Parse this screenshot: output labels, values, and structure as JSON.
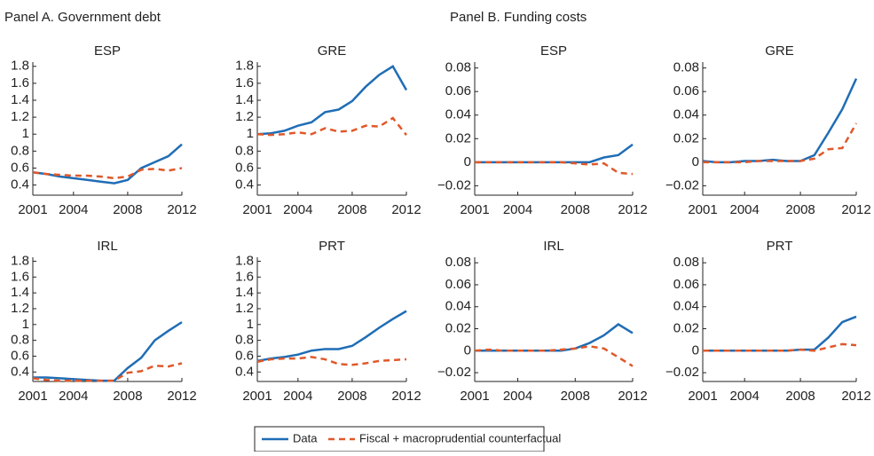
{
  "panel_titles": [
    "Panel A. Government debt",
    "Panel B. Funding costs"
  ],
  "chart_data": [
    {
      "type": "line",
      "title": "ESP",
      "xlim": [
        2001,
        2012
      ],
      "xticks": [
        2001,
        2004,
        2008,
        2012
      ],
      "ylim": [
        0.28,
        1.85
      ],
      "yticks": [
        0.4,
        0.6,
        0.8,
        1,
        1.2,
        1.4,
        1.6,
        1.8
      ],
      "x": [
        2001,
        2002,
        2003,
        2004,
        2005,
        2006,
        2007,
        2008,
        2009,
        2010,
        2011,
        2012
      ],
      "series": [
        {
          "name": "Data",
          "color": "#1f6db5",
          "dashed": false,
          "values": [
            0.55,
            0.53,
            0.5,
            0.48,
            0.46,
            0.44,
            0.42,
            0.46,
            0.6,
            0.67,
            0.74,
            0.88
          ]
        },
        {
          "name": "Fiscal + macroprudential counterfactual",
          "color": "#e0582a",
          "dashed": true,
          "values": [
            0.55,
            0.53,
            0.52,
            0.51,
            0.51,
            0.5,
            0.48,
            0.5,
            0.58,
            0.59,
            0.57,
            0.6
          ]
        }
      ]
    },
    {
      "type": "line",
      "title": "GRE",
      "xlim": [
        2001,
        2012
      ],
      "xticks": [
        2001,
        2004,
        2008,
        2012
      ],
      "ylim": [
        0.28,
        1.85
      ],
      "yticks": [
        0.4,
        0.6,
        0.8,
        1,
        1.2,
        1.4,
        1.6,
        1.8
      ],
      "x": [
        2001,
        2002,
        2003,
        2004,
        2005,
        2006,
        2007,
        2008,
        2009,
        2010,
        2011,
        2012
      ],
      "series": [
        {
          "name": "Data",
          "color": "#1f6db5",
          "dashed": false,
          "values": [
            1.0,
            1.01,
            1.04,
            1.1,
            1.14,
            1.26,
            1.29,
            1.39,
            1.56,
            1.7,
            1.8,
            1.52
          ]
        },
        {
          "name": "Fiscal + macroprudential counterfactual",
          "color": "#e0582a",
          "dashed": true,
          "values": [
            1.0,
            0.99,
            1.0,
            1.02,
            1.0,
            1.07,
            1.03,
            1.04,
            1.1,
            1.09,
            1.19,
            0.99
          ]
        }
      ]
    },
    {
      "type": "line",
      "title": "ESP",
      "xlim": [
        2001,
        2012
      ],
      "xticks": [
        2001,
        2004,
        2008,
        2012
      ],
      "ylim": [
        -0.028,
        0.085
      ],
      "yticks": [
        {
          "value": -0.02,
          "label": "−0.02"
        },
        0,
        0.02,
        0.04,
        0.06,
        0.08
      ],
      "x": [
        2001,
        2002,
        2003,
        2004,
        2005,
        2006,
        2007,
        2008,
        2009,
        2010,
        2011,
        2012
      ],
      "series": [
        {
          "name": "Data",
          "color": "#1f6db5",
          "dashed": false,
          "values": [
            0,
            0,
            0,
            0,
            0,
            0,
            0,
            0,
            0,
            0.004,
            0.006,
            0.015
          ]
        },
        {
          "name": "Fiscal + macroprudential counterfactual",
          "color": "#e0582a",
          "dashed": true,
          "values": [
            0,
            0,
            0,
            0,
            0,
            0,
            0,
            -0.001,
            -0.002,
            -0.001,
            -0.009,
            -0.01
          ]
        }
      ]
    },
    {
      "type": "line",
      "title": "GRE",
      "xlim": [
        2001,
        2012
      ],
      "xticks": [
        2001,
        2004,
        2008,
        2012
      ],
      "ylim": [
        -0.028,
        0.085
      ],
      "yticks": [
        {
          "value": -0.02,
          "label": "−0.02"
        },
        0,
        0.02,
        0.04,
        0.06,
        0.08
      ],
      "x": [
        2001,
        2002,
        2003,
        2004,
        2005,
        2006,
        2007,
        2008,
        2009,
        2010,
        2011,
        2012
      ],
      "series": [
        {
          "name": "Data",
          "color": "#1f6db5",
          "dashed": false,
          "values": [
            0.001,
            0,
            0,
            0.001,
            0.001,
            0.002,
            0.001,
            0.001,
            0.006,
            0.025,
            0.045,
            0.071
          ]
        },
        {
          "name": "Fiscal + macroprudential counterfactual",
          "color": "#e0582a",
          "dashed": true,
          "values": [
            0,
            0,
            0,
            0,
            0.001,
            0.001,
            0.001,
            0.001,
            0.003,
            0.011,
            0.012,
            0.033
          ]
        }
      ]
    },
    {
      "type": "line",
      "title": "IRL",
      "xlim": [
        2001,
        2012
      ],
      "xticks": [
        2001,
        2004,
        2008,
        2012
      ],
      "ylim": [
        0.28,
        1.85
      ],
      "yticks": [
        0.4,
        0.6,
        0.8,
        1,
        1.2,
        1.4,
        1.6,
        1.8
      ],
      "x": [
        2001,
        2002,
        2003,
        2004,
        2005,
        2006,
        2007,
        2008,
        2009,
        2010,
        2011,
        2012
      ],
      "series": [
        {
          "name": "Data",
          "color": "#1f6db5",
          "dashed": false,
          "values": [
            0.33,
            0.33,
            0.32,
            0.31,
            0.3,
            0.29,
            0.29,
            0.45,
            0.58,
            0.8,
            0.92,
            1.03
          ]
        },
        {
          "name": "Fiscal + macroprudential counterfactual",
          "color": "#e0582a",
          "dashed": true,
          "values": [
            0.32,
            0.3,
            0.29,
            0.29,
            0.29,
            0.29,
            0.29,
            0.39,
            0.41,
            0.48,
            0.47,
            0.51
          ]
        }
      ]
    },
    {
      "type": "line",
      "title": "PRT",
      "xlim": [
        2001,
        2012
      ],
      "xticks": [
        2001,
        2004,
        2008,
        2012
      ],
      "ylim": [
        0.28,
        1.85
      ],
      "yticks": [
        0.4,
        0.6,
        0.8,
        1,
        1.2,
        1.4,
        1.6,
        1.8
      ],
      "x": [
        2001,
        2002,
        2003,
        2004,
        2005,
        2006,
        2007,
        2008,
        2009,
        2010,
        2011,
        2012
      ],
      "series": [
        {
          "name": "Data",
          "color": "#1f6db5",
          "dashed": false,
          "values": [
            0.54,
            0.57,
            0.59,
            0.62,
            0.67,
            0.69,
            0.69,
            0.73,
            0.84,
            0.96,
            1.07,
            1.17
          ]
        },
        {
          "name": "Fiscal + macroprudential counterfactual",
          "color": "#e0582a",
          "dashed": true,
          "values": [
            0.53,
            0.56,
            0.57,
            0.57,
            0.59,
            0.56,
            0.5,
            0.49,
            0.51,
            0.54,
            0.55,
            0.56
          ]
        }
      ]
    },
    {
      "type": "line",
      "title": "IRL",
      "xlim": [
        2001,
        2012
      ],
      "xticks": [
        2001,
        2004,
        2008,
        2012
      ],
      "ylim": [
        -0.028,
        0.085
      ],
      "yticks": [
        {
          "value": -0.02,
          "label": "−0.02"
        },
        0,
        0.02,
        0.04,
        0.06,
        0.08
      ],
      "x": [
        2001,
        2002,
        2003,
        2004,
        2005,
        2006,
        2007,
        2008,
        2009,
        2010,
        2011,
        2012
      ],
      "series": [
        {
          "name": "Data",
          "color": "#1f6db5",
          "dashed": false,
          "values": [
            0,
            0,
            0,
            0,
            0,
            0,
            0,
            0.002,
            0.007,
            0.014,
            0.024,
            0.016
          ]
        },
        {
          "name": "Fiscal + macroprudential counterfactual",
          "color": "#e0582a",
          "dashed": true,
          "values": [
            0,
            0.001,
            0,
            0,
            0,
            0,
            0.001,
            0.002,
            0.004,
            0.002,
            -0.006,
            -0.014
          ]
        }
      ]
    },
    {
      "type": "line",
      "title": "PRT",
      "xlim": [
        2001,
        2012
      ],
      "xticks": [
        2001,
        2004,
        2008,
        2012
      ],
      "ylim": [
        -0.028,
        0.085
      ],
      "yticks": [
        {
          "value": -0.02,
          "label": "−0.02"
        },
        0,
        0.02,
        0.04,
        0.06,
        0.08
      ],
      "x": [
        2001,
        2002,
        2003,
        2004,
        2005,
        2006,
        2007,
        2008,
        2009,
        2010,
        2011,
        2012
      ],
      "series": [
        {
          "name": "Data",
          "color": "#1f6db5",
          "dashed": false,
          "values": [
            0,
            0,
            0,
            0,
            0,
            0,
            0,
            0.001,
            0.001,
            0.012,
            0.026,
            0.031
          ]
        },
        {
          "name": "Fiscal + macroprudential counterfactual",
          "color": "#e0582a",
          "dashed": true,
          "values": [
            0,
            0,
            0,
            0,
            0,
            0,
            0,
            0.001,
            0,
            0.003,
            0.006,
            0.005
          ]
        }
      ]
    }
  ]
}
